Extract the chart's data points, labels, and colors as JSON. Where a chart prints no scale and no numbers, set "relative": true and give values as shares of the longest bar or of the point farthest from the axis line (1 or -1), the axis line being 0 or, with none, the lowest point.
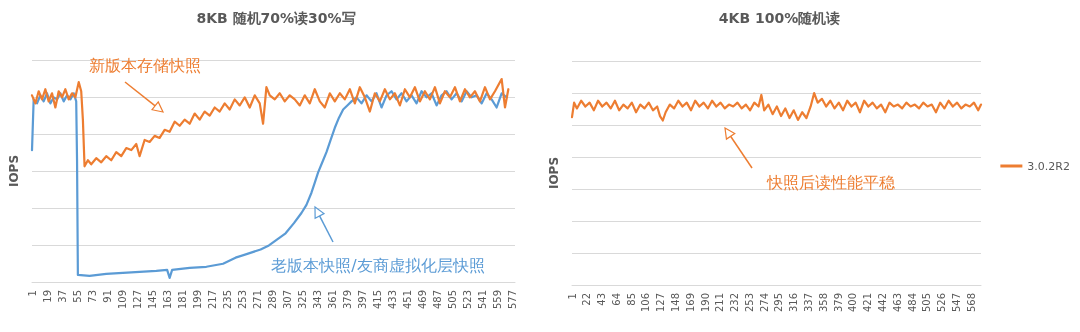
{
  "chart_data": [
    {
      "type": "line",
      "title": "8KB 随机70%读30%写",
      "ylabel": "IOPS",
      "relative": true,
      "grid": "y",
      "legend": false,
      "marker": "none",
      "tick_labels": "x",
      "xlim": [
        1,
        580
      ],
      "xticks": [
        1,
        19,
        37,
        55,
        73,
        91,
        109,
        127,
        145,
        163,
        181,
        199,
        217,
        235,
        253,
        271,
        289,
        307,
        325,
        343,
        361,
        379,
        397,
        415,
        433,
        451,
        469,
        487,
        505,
        523,
        541,
        559,
        577
      ],
      "annotations": [
        "新版本存储快照",
        "老版本快照/友商虚拟化层快照"
      ],
      "series": [
        {
          "color": "#5b9bd5",
          "x": [
            1,
            3,
            7,
            11,
            15,
            19,
            23,
            27,
            31,
            35,
            39,
            43,
            47,
            51,
            54,
            55,
            56,
            70,
            90,
            110,
            130,
            150,
            163,
            166,
            169,
            190,
            210,
            230,
            245,
            260,
            275,
            285,
            295,
            305,
            315,
            324,
            330,
            336,
            340,
            344,
            349,
            354,
            359,
            364,
            369,
            374,
            379,
            384,
            390,
            396,
            402,
            408,
            414,
            420,
            426,
            432,
            438,
            444,
            450,
            456,
            462,
            468,
            474,
            480,
            486,
            492,
            498,
            504,
            510,
            516,
            522,
            528,
            534,
            540,
            546,
            552,
            558,
            564,
            570
          ],
          "values": [
            0.65,
            0.9,
            0.88,
            0.92,
            0.89,
            0.93,
            0.88,
            0.91,
            0.9,
            0.93,
            0.89,
            0.92,
            0.9,
            0.93,
            0.89,
            0.6,
            0.035,
            0.03,
            0.04,
            0.045,
            0.05,
            0.055,
            0.06,
            0.02,
            0.06,
            0.07,
            0.075,
            0.09,
            0.12,
            0.14,
            0.16,
            0.18,
            0.21,
            0.24,
            0.29,
            0.34,
            0.38,
            0.44,
            0.49,
            0.54,
            0.59,
            0.64,
            0.7,
            0.76,
            0.81,
            0.85,
            0.87,
            0.89,
            0.91,
            0.88,
            0.92,
            0.89,
            0.93,
            0.86,
            0.92,
            0.94,
            0.9,
            0.93,
            0.89,
            0.92,
            0.88,
            0.94,
            0.91,
            0.93,
            0.87,
            0.92,
            0.94,
            0.9,
            0.93,
            0.89,
            0.94,
            0.91,
            0.92,
            0.88,
            0.93,
            0.9,
            0.86,
            0.93,
            0.91
          ]
        },
        {
          "color": "#ed7d31",
          "x": [
            1,
            5,
            9,
            13,
            17,
            21,
            25,
            29,
            33,
            37,
            41,
            45,
            49,
            53,
            57,
            60,
            62,
            64,
            68,
            72,
            78,
            84,
            90,
            96,
            102,
            108,
            114,
            120,
            126,
            130,
            136,
            142,
            148,
            154,
            160,
            166,
            172,
            178,
            184,
            190,
            196,
            202,
            208,
            214,
            220,
            226,
            232,
            238,
            244,
            250,
            256,
            262,
            268,
            274,
            278,
            282,
            286,
            292,
            298,
            304,
            310,
            316,
            322,
            328,
            334,
            340,
            346,
            352,
            358,
            364,
            370,
            376,
            382,
            388,
            394,
            400,
            406,
            412,
            418,
            424,
            430,
            436,
            442,
            448,
            454,
            460,
            466,
            472,
            478,
            484,
            490,
            496,
            502,
            508,
            514,
            520,
            526,
            532,
            538,
            544,
            550,
            556,
            564,
            568,
            572
          ],
          "values": [
            0.92,
            0.88,
            0.94,
            0.9,
            0.95,
            0.89,
            0.93,
            0.86,
            0.94,
            0.91,
            0.95,
            0.9,
            0.93,
            0.91,
            0.985,
            0.94,
            0.8,
            0.57,
            0.6,
            0.58,
            0.61,
            0.59,
            0.62,
            0.6,
            0.64,
            0.62,
            0.66,
            0.65,
            0.68,
            0.62,
            0.7,
            0.69,
            0.72,
            0.71,
            0.75,
            0.74,
            0.79,
            0.77,
            0.8,
            0.78,
            0.83,
            0.8,
            0.84,
            0.82,
            0.86,
            0.84,
            0.88,
            0.85,
            0.9,
            0.87,
            0.91,
            0.86,
            0.92,
            0.88,
            0.78,
            0.96,
            0.92,
            0.9,
            0.93,
            0.89,
            0.92,
            0.9,
            0.87,
            0.92,
            0.88,
            0.95,
            0.89,
            0.86,
            0.93,
            0.89,
            0.93,
            0.9,
            0.95,
            0.88,
            0.96,
            0.91,
            0.84,
            0.93,
            0.89,
            0.95,
            0.9,
            0.93,
            0.87,
            0.95,
            0.91,
            0.96,
            0.89,
            0.94,
            0.9,
            0.96,
            0.88,
            0.94,
            0.91,
            0.96,
            0.89,
            0.95,
            0.91,
            0.94,
            0.89,
            0.96,
            0.9,
            0.94,
            1.0,
            0.86,
            0.95
          ]
        }
      ]
    },
    {
      "type": "line",
      "title": "4KB 100%随机读",
      "ylabel": "IOPS",
      "relative": true,
      "grid": "y",
      "legend": "right",
      "marker": "none",
      "tick_labels": "x",
      "xlim": [
        1,
        582
      ],
      "xticks": [
        1,
        22,
        43,
        64,
        85,
        106,
        127,
        148,
        169,
        190,
        211,
        232,
        253,
        274,
        295,
        316,
        337,
        358,
        379,
        400,
        421,
        442,
        463,
        484,
        505,
        526,
        547,
        568
      ],
      "annotations": [
        "快照后读性能平稳"
      ],
      "series": [
        {
          "name": "3.0.2R2",
          "color": "#ed7d31",
          "x": [
            1,
            4,
            8,
            14,
            20,
            26,
            32,
            38,
            44,
            50,
            56,
            62,
            68,
            74,
            80,
            86,
            92,
            98,
            104,
            110,
            116,
            122,
            126,
            130,
            134,
            140,
            146,
            152,
            158,
            164,
            170,
            176,
            182,
            188,
            194,
            200,
            206,
            212,
            218,
            224,
            230,
            236,
            242,
            248,
            254,
            260,
            266,
            270,
            274,
            280,
            286,
            292,
            298,
            304,
            310,
            316,
            322,
            328,
            334,
            340,
            345,
            350,
            356,
            362,
            368,
            374,
            380,
            386,
            392,
            398,
            404,
            410,
            416,
            422,
            428,
            434,
            440,
            446,
            452,
            458,
            464,
            470,
            476,
            482,
            488,
            494,
            500,
            506,
            512,
            518,
            524,
            530,
            536,
            542,
            548,
            554,
            560,
            566,
            572,
            578,
            582
          ],
          "values": [
            0.875,
            0.95,
            0.92,
            0.96,
            0.93,
            0.95,
            0.91,
            0.96,
            0.93,
            0.95,
            0.92,
            0.96,
            0.91,
            0.94,
            0.92,
            0.95,
            0.9,
            0.94,
            0.92,
            0.95,
            0.91,
            0.93,
            0.88,
            0.857,
            0.9,
            0.94,
            0.92,
            0.96,
            0.93,
            0.95,
            0.91,
            0.96,
            0.93,
            0.95,
            0.92,
            0.96,
            0.93,
            0.95,
            0.92,
            0.94,
            0.93,
            0.95,
            0.92,
            0.94,
            0.91,
            0.95,
            0.93,
            0.99,
            0.91,
            0.94,
            0.89,
            0.93,
            0.88,
            0.92,
            0.87,
            0.91,
            0.86,
            0.9,
            0.87,
            0.93,
            1.0,
            0.95,
            0.97,
            0.93,
            0.96,
            0.92,
            0.95,
            0.91,
            0.96,
            0.93,
            0.95,
            0.9,
            0.96,
            0.93,
            0.95,
            0.92,
            0.94,
            0.9,
            0.95,
            0.93,
            0.94,
            0.92,
            0.95,
            0.93,
            0.94,
            0.92,
            0.95,
            0.93,
            0.94,
            0.9,
            0.95,
            0.92,
            0.96,
            0.93,
            0.95,
            0.92,
            0.94,
            0.93,
            0.95,
            0.91,
            0.94
          ]
        }
      ]
    }
  ]
}
